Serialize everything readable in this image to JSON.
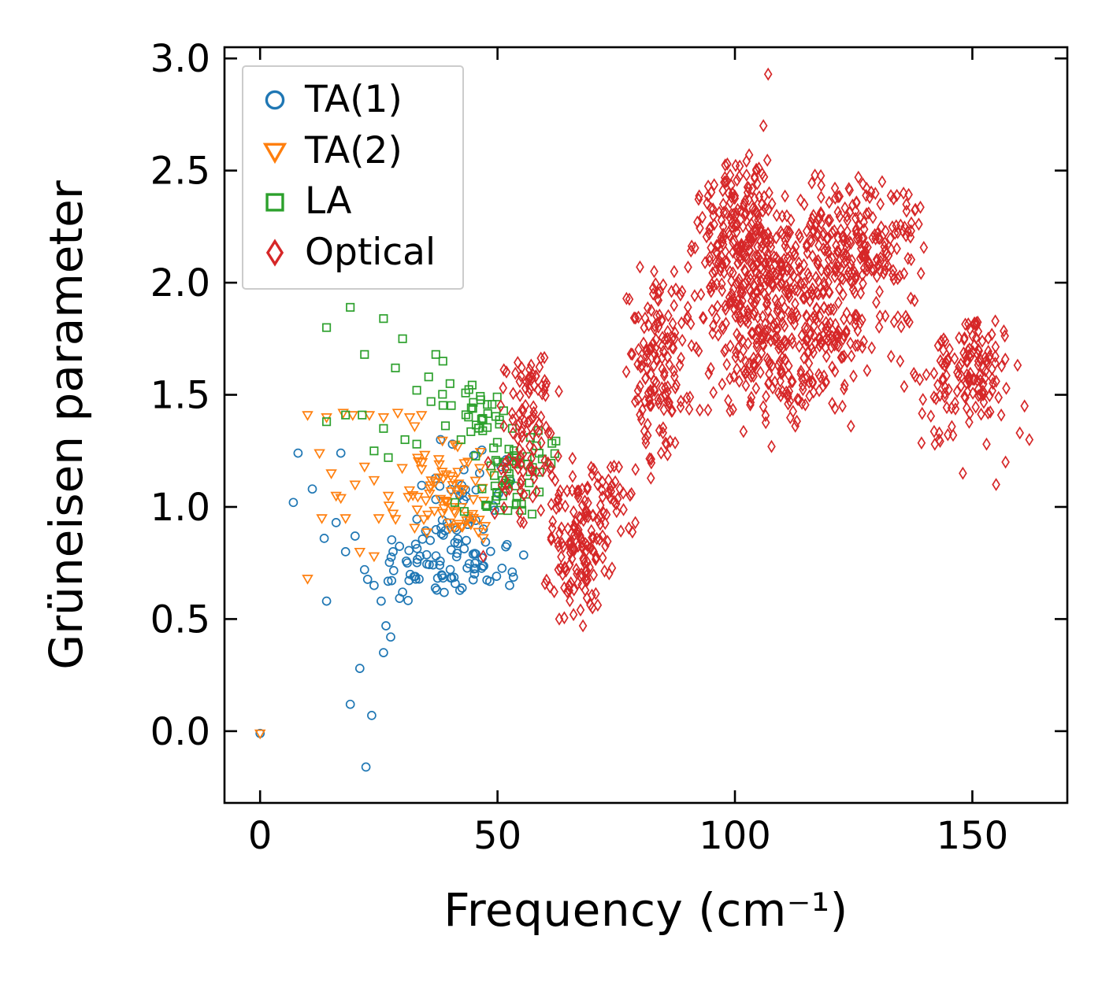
{
  "chart_data": {
    "type": "scatter",
    "title": "",
    "xlabel": "Frequency (cm⁻¹)",
    "ylabel": "Grüneisen parameter",
    "xlim": [
      -7.5,
      170
    ],
    "ylim": [
      -0.32,
      3.05
    ],
    "xticks": {
      "values": [
        0,
        50,
        100,
        150
      ],
      "labels": [
        "0",
        "50",
        "100",
        "150"
      ]
    },
    "yticks": {
      "values": [
        0.0,
        0.5,
        1.0,
        1.5,
        2.0,
        2.5,
        3.0
      ],
      "labels": [
        "0.0",
        "0.5",
        "1.0",
        "1.5",
        "2.0",
        "2.5",
        "3.0"
      ]
    },
    "grid": false,
    "legend": {
      "position": "upper-left",
      "border_color": "#cccccc",
      "entries": [
        "TA(1)",
        "TA(2)",
        "LA",
        "Optical"
      ]
    },
    "axes_color": "#000000",
    "tick_direction": "in",
    "series": [
      {
        "name": "TA(1)",
        "marker": "circle",
        "color": "#1f77b4",
        "points": [
          [
            0,
            -0.01
          ],
          [
            22.3,
            -0.16
          ],
          [
            19,
            0.12
          ],
          [
            23.5,
            0.07
          ],
          [
            21,
            0.28
          ],
          [
            26,
            0.35
          ],
          [
            26.5,
            0.47
          ],
          [
            27.5,
            0.42
          ],
          [
            25.5,
            0.58
          ],
          [
            14,
            0.58
          ],
          [
            7,
            1.02
          ],
          [
            11,
            1.08
          ],
          [
            8,
            1.24
          ],
          [
            17,
            1.24
          ],
          [
            38,
            1.3
          ],
          [
            40.5,
            1.28
          ],
          [
            45,
            1.23
          ],
          [
            13.5,
            0.86
          ],
          [
            16,
            0.93
          ],
          [
            20,
            0.87
          ],
          [
            18,
            0.8
          ],
          [
            22,
            0.72
          ],
          [
            24,
            0.65
          ],
          [
            28,
            0.8
          ],
          [
            30,
            0.62
          ],
          [
            31,
            0.75
          ]
        ],
        "clusters": [
          {
            "n": 80,
            "cx": 38,
            "cy": 0.77,
            "sx": 7.5,
            "sy": 0.1,
            "xmin": 18,
            "xmax": 57,
            "ymin": 0.56,
            "ymax": 1.0
          },
          {
            "n": 25,
            "cx": 44,
            "cy": 1.05,
            "sx": 5,
            "sy": 0.1,
            "xmin": 32,
            "xmax": 55,
            "ymin": 0.9,
            "ymax": 1.3
          },
          {
            "n": 12,
            "cx": 50,
            "cy": 0.7,
            "sx": 3,
            "sy": 0.06,
            "xmin": 44,
            "xmax": 57,
            "ymin": 0.6,
            "ymax": 0.85
          }
        ]
      },
      {
        "name": "TA(2)",
        "marker": "triangle-down",
        "color": "#ff7f0e",
        "points": [
          [
            0,
            -0.01
          ],
          [
            10,
            0.68
          ],
          [
            12.5,
            1.24
          ],
          [
            10,
            1.41
          ],
          [
            14,
            1.4
          ],
          [
            17.5,
            1.42
          ],
          [
            19.5,
            1.41
          ],
          [
            23,
            1.41
          ],
          [
            26,
            1.4
          ],
          [
            29,
            1.42
          ],
          [
            31.5,
            1.4
          ],
          [
            34,
            1.41
          ],
          [
            13,
            0.95
          ],
          [
            16,
            1.05
          ],
          [
            17,
            1.04
          ],
          [
            20,
            1.1
          ],
          [
            22,
            1.18
          ],
          [
            24,
            1.12
          ],
          [
            21,
            0.8
          ],
          [
            24,
            0.78
          ],
          [
            18,
            0.95
          ],
          [
            15,
            1.15
          ],
          [
            27,
            1.05
          ],
          [
            28,
            0.97
          ],
          [
            25,
            0.95
          ]
        ],
        "clusters": [
          {
            "n": 60,
            "cx": 38,
            "cy": 1.1,
            "sx": 6,
            "sy": 0.12,
            "xmin": 26,
            "xmax": 52,
            "ymin": 0.85,
            "ymax": 1.42
          },
          {
            "n": 18,
            "cx": 42,
            "cy": 0.93,
            "sx": 5,
            "sy": 0.05,
            "xmin": 30,
            "xmax": 52,
            "ymin": 0.85,
            "ymax": 1.02
          }
        ]
      },
      {
        "name": "LA",
        "marker": "square",
        "color": "#2ca02c",
        "points": [
          [
            14,
            1.8
          ],
          [
            19,
            1.89
          ],
          [
            22,
            1.68
          ],
          [
            26,
            1.84
          ],
          [
            28.5,
            1.62
          ],
          [
            30,
            1.75
          ],
          [
            33,
            1.52
          ],
          [
            35.5,
            1.58
          ],
          [
            37,
            1.68
          ],
          [
            38.5,
            1.65
          ],
          [
            40,
            1.55
          ],
          [
            36,
            1.47
          ],
          [
            14,
            1.38
          ],
          [
            18,
            1.41
          ],
          [
            21.5,
            1.41
          ],
          [
            26,
            1.35
          ],
          [
            30.5,
            1.3
          ],
          [
            33,
            1.28
          ],
          [
            27,
            1.22
          ],
          [
            24,
            1.25
          ],
          [
            41,
            1.02
          ],
          [
            43,
            0.98
          ]
        ],
        "clusters": [
          {
            "n": 35,
            "cx": 46,
            "cy": 1.4,
            "sx": 4,
            "sy": 0.08,
            "xmin": 38,
            "xmax": 54,
            "ymin": 1.22,
            "ymax": 1.56
          },
          {
            "n": 45,
            "cx": 53,
            "cy": 1.1,
            "sx": 4,
            "sy": 0.09,
            "xmin": 45,
            "xmax": 62,
            "ymin": 0.93,
            "ymax": 1.3
          },
          {
            "n": 10,
            "cx": 58,
            "cy": 1.28,
            "sx": 2.5,
            "sy": 0.05,
            "xmin": 52,
            "xmax": 63,
            "ymin": 1.18,
            "ymax": 1.38
          }
        ]
      },
      {
        "name": "Optical",
        "marker": "thin-diamond",
        "color": "#d62728",
        "points": [
          [
            103,
            2.57
          ],
          [
            104.5,
            2.5
          ],
          [
            106,
            2.7
          ],
          [
            107,
            2.93
          ],
          [
            99,
            2.48
          ],
          [
            101,
            2.52
          ],
          [
            98,
            2.45
          ],
          [
            126,
            2.47
          ],
          [
            124,
            2.42
          ],
          [
            131,
            2.45
          ],
          [
            63,
            0.5
          ],
          [
            68,
            0.47
          ],
          [
            70,
            0.55
          ],
          [
            66,
            0.52
          ],
          [
            155,
            1.1
          ],
          [
            157,
            1.2
          ],
          [
            153,
            1.28
          ],
          [
            160,
            1.33
          ],
          [
            161,
            1.45
          ],
          [
            162,
            1.3
          ],
          [
            148,
            1.15
          ],
          [
            143,
            1.3
          ],
          [
            47,
            0.78
          ],
          [
            80,
            2.07
          ],
          [
            83,
            2.05
          ]
        ],
        "clusters": [
          {
            "n": 80,
            "cx": 56,
            "cy": 1.3,
            "sx": 3.5,
            "sy": 0.18,
            "xmin": 48,
            "xmax": 63,
            "ymin": 0.9,
            "ymax": 1.62
          },
          {
            "n": 30,
            "cx": 58,
            "cy": 1.55,
            "sx": 3,
            "sy": 0.07,
            "xmin": 50,
            "xmax": 64,
            "ymin": 1.4,
            "ymax": 1.7
          },
          {
            "n": 150,
            "cx": 67,
            "cy": 0.85,
            "sx": 3.5,
            "sy": 0.16,
            "xmin": 59,
            "xmax": 76,
            "ymin": 0.5,
            "ymax": 1.25
          },
          {
            "n": 25,
            "cx": 75,
            "cy": 1.02,
            "sx": 2.5,
            "sy": 0.1,
            "xmin": 70,
            "xmax": 80,
            "ymin": 0.8,
            "ymax": 1.25
          },
          {
            "n": 150,
            "cx": 84,
            "cy": 1.62,
            "sx": 3.5,
            "sy": 0.22,
            "xmin": 77,
            "xmax": 92,
            "ymin": 1.05,
            "ymax": 2.1
          },
          {
            "n": 550,
            "cx": 112,
            "cy": 1.95,
            "sx": 11,
            "sy": 0.24,
            "xmin": 90,
            "xmax": 140,
            "ymin": 1.25,
            "ymax": 2.5
          },
          {
            "n": 130,
            "cx": 100,
            "cy": 2.25,
            "sx": 4.5,
            "sy": 0.15,
            "xmin": 92,
            "xmax": 110,
            "ymin": 1.9,
            "ymax": 2.55
          },
          {
            "n": 110,
            "cx": 128,
            "cy": 2.2,
            "sx": 5.5,
            "sy": 0.13,
            "xmin": 116,
            "xmax": 140,
            "ymin": 1.9,
            "ymax": 2.45
          },
          {
            "n": 90,
            "cx": 108,
            "cy": 1.6,
            "sx": 8,
            "sy": 0.13,
            "xmin": 94,
            "xmax": 125,
            "ymin": 1.3,
            "ymax": 1.85
          },
          {
            "n": 120,
            "cx": 150,
            "cy": 1.62,
            "sx": 4.5,
            "sy": 0.11,
            "xmin": 140,
            "xmax": 160,
            "ymin": 1.35,
            "ymax": 1.85
          },
          {
            "n": 25,
            "cx": 143,
            "cy": 1.45,
            "sx": 3,
            "sy": 0.1,
            "xmin": 137,
            "xmax": 150,
            "ymin": 1.2,
            "ymax": 1.7
          }
        ]
      }
    ]
  }
}
